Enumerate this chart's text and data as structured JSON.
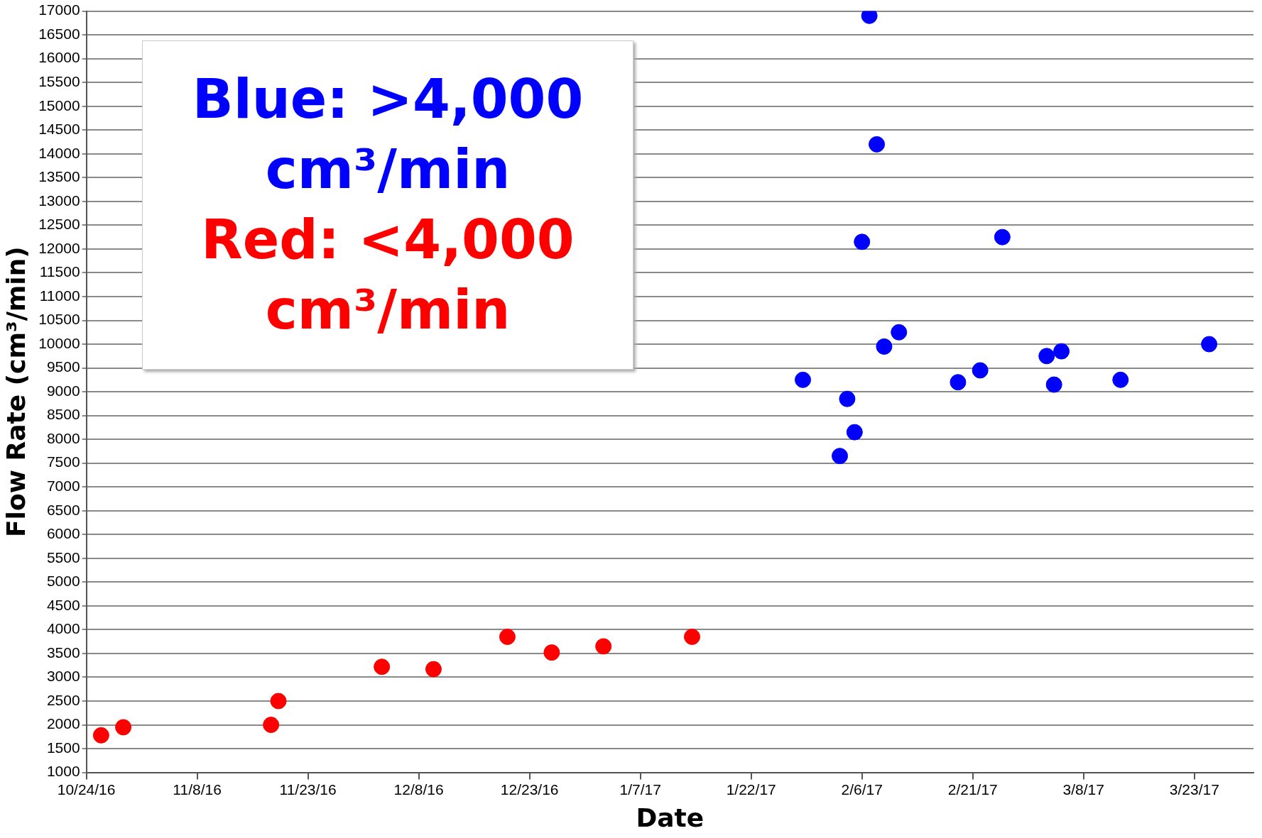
{
  "chart_data": {
    "type": "scatter",
    "xlabel": "Date",
    "ylabel": "Flow Rate (cm³/min)",
    "xlim": [
      "2016-10-24",
      "2017-03-31"
    ],
    "xticks": [
      {
        "value": "2016-10-24",
        "label": "10/24/16"
      },
      {
        "value": "2016-11-08",
        "label": "11/8/16"
      },
      {
        "value": "2016-11-23",
        "label": "11/23/16"
      },
      {
        "value": "2016-12-08",
        "label": "12/8/16"
      },
      {
        "value": "2016-12-23",
        "label": "12/23/16"
      },
      {
        "value": "2017-01-07",
        "label": "1/7/17"
      },
      {
        "value": "2017-01-22",
        "label": "1/22/17"
      },
      {
        "value": "2017-02-06",
        "label": "2/6/17"
      },
      {
        "value": "2017-02-21",
        "label": "2/21/17"
      },
      {
        "value": "2017-03-08",
        "label": "3/8/17"
      },
      {
        "value": "2017-03-23",
        "label": "3/23/17"
      }
    ],
    "ylim": [
      1000,
      17000
    ],
    "yticks": [
      1000,
      1500,
      2000,
      2500,
      3000,
      3500,
      4000,
      4500,
      5000,
      5500,
      6000,
      6500,
      7000,
      7500,
      8000,
      8500,
      9000,
      9500,
      10000,
      10500,
      11000,
      11500,
      12000,
      12500,
      13000,
      13500,
      14000,
      14500,
      15000,
      15500,
      16000,
      16500,
      17000
    ],
    "grid": "y",
    "marker": "circle",
    "legend": false,
    "series": [
      {
        "color": "#0000ff",
        "x": [
          "2017-01-29",
          "2017-02-03",
          "2017-02-04",
          "2017-02-05",
          "2017-02-06",
          "2017-02-07",
          "2017-02-08",
          "2017-02-09",
          "2017-02-11",
          "2017-02-19",
          "2017-02-22",
          "2017-02-25",
          "2017-03-03",
          "2017-03-04",
          "2017-03-05",
          "2017-03-13",
          "2017-03-25"
        ],
        "values": [
          9250,
          7650,
          8850,
          8150,
          12150,
          16900,
          14200,
          9950,
          10250,
          9200,
          9450,
          12250,
          9750,
          9150,
          9850,
          9250,
          10000
        ]
      },
      {
        "color": "#ff0000",
        "x": [
          "2016-10-26",
          "2016-10-29",
          "2016-11-18",
          "2016-11-19",
          "2016-12-03",
          "2016-12-10",
          "2016-12-20",
          "2016-12-26",
          "2017-01-02",
          "2017-01-14"
        ],
        "values": [
          1780,
          1950,
          2000,
          2500,
          3220,
          3170,
          3850,
          3520,
          3650,
          3850
        ]
      }
    ],
    "annotations": [
      "Blue: >4,000 cm³/min",
      "Red: <4,000 cm³/min"
    ]
  }
}
